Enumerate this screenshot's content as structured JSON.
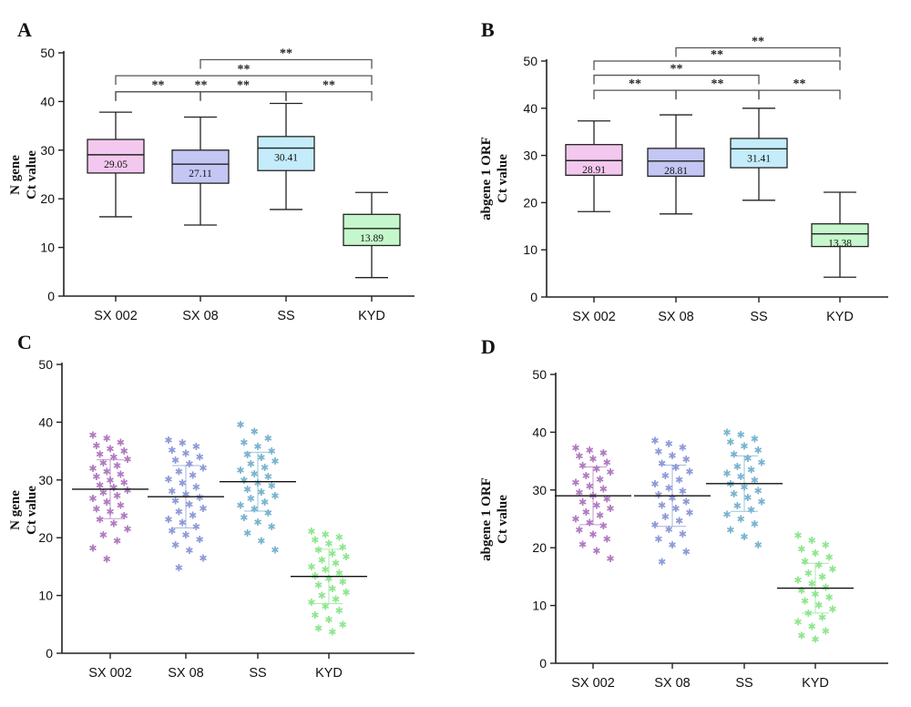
{
  "categories": [
    "SX 002",
    "SX 08",
    "SS",
    "KYD"
  ],
  "colors": {
    "box_fills": [
      "#f3c8ee",
      "#c4c6f4",
      "#c4ecfb",
      "#c6f7cc"
    ],
    "point_colors": [
      "#b07ac0",
      "#8d9ad8",
      "#79b3cf",
      "#8ee68e"
    ]
  },
  "chart_data": [
    {
      "panel": "A",
      "type": "box",
      "title": "",
      "ylabel": [
        "N gene",
        "Ct value"
      ],
      "xlabel": "",
      "ylim": [
        0,
        50
      ],
      "yticks": [
        0,
        10,
        20,
        30,
        40,
        50
      ],
      "categories": [
        "SX 002",
        "SX 08",
        "SS",
        "KYD"
      ],
      "boxes": [
        {
          "min": 16.3,
          "q1": 25.3,
          "median": 29.05,
          "q3": 32.2,
          "max": 37.8,
          "label": "29.05"
        },
        {
          "min": 14.6,
          "q1": 23.2,
          "median": 27.11,
          "q3": 30.0,
          "max": 36.8,
          "label": "27.11"
        },
        {
          "min": 17.8,
          "q1": 25.8,
          "median": 30.41,
          "q3": 32.8,
          "max": 39.6,
          "label": "30.41"
        },
        {
          "min": 3.8,
          "q1": 10.4,
          "median": 13.89,
          "q3": 16.8,
          "max": 21.3,
          "label": "13.89"
        }
      ],
      "significance": [
        {
          "from": 1,
          "to": 3,
          "y": 48.6,
          "label": "**"
        },
        {
          "from": 0,
          "to": 3,
          "y": 45.3,
          "label": "**"
        },
        {
          "from": 0,
          "to": 2,
          "y": 42.0,
          "label": "**"
        },
        {
          "from": 0,
          "to": 1,
          "y": 42.0,
          "label": "**"
        },
        {
          "from": 1,
          "to": 2,
          "y": 42.0,
          "label": "**"
        },
        {
          "from": 2,
          "to": 3,
          "y": 42.0,
          "label": "**"
        }
      ]
    },
    {
      "panel": "B",
      "type": "box",
      "title": "",
      "ylabel": [
        "abgene 1 ORF",
        "Ct value"
      ],
      "xlabel": "",
      "ylim": [
        0,
        50
      ],
      "yticks": [
        0,
        10,
        20,
        30,
        40,
        50
      ],
      "categories": [
        "SX 002",
        "SX 08",
        "SS",
        "KYD"
      ],
      "boxes": [
        {
          "min": 18.1,
          "q1": 25.8,
          "median": 28.91,
          "q3": 32.3,
          "max": 37.3,
          "label": "28.91"
        },
        {
          "min": 17.6,
          "q1": 25.6,
          "median": 28.81,
          "q3": 31.5,
          "max": 38.6,
          "label": "28.81"
        },
        {
          "min": 20.5,
          "q1": 27.4,
          "median": 31.41,
          "q3": 33.6,
          "max": 40.0,
          "label": "31.41"
        },
        {
          "min": 4.2,
          "q1": 10.7,
          "median": 13.38,
          "q3": 15.5,
          "max": 22.2,
          "label": "13.38"
        }
      ],
      "significance": [
        {
          "from": 1,
          "to": 3,
          "y": 52.8,
          "label": "**"
        },
        {
          "from": 0,
          "to": 3,
          "y": 50.0,
          "label": "**"
        },
        {
          "from": 0,
          "to": 2,
          "y": 47.0,
          "label": "**"
        },
        {
          "from": 0,
          "to": 1,
          "y": 43.8,
          "label": "**"
        },
        {
          "from": 1,
          "to": 2,
          "y": 43.8,
          "label": "**"
        },
        {
          "from": 2,
          "to": 3,
          "y": 43.8,
          "label": "**"
        }
      ]
    },
    {
      "panel": "C",
      "type": "scatter",
      "title": "",
      "ylabel": [
        "N gene",
        "Ct value"
      ],
      "xlabel": "",
      "ylim": [
        0,
        50
      ],
      "yticks": [
        0,
        10,
        20,
        30,
        40,
        50
      ],
      "categories": [
        "SX 002",
        "SX 08",
        "SS",
        "KYD"
      ],
      "groups": [
        {
          "mean": 28.4,
          "sd": 5.1,
          "values": [
            37.8,
            37.2,
            36.5,
            36.0,
            35.4,
            35.0,
            34.5,
            34.0,
            33.6,
            33.0,
            32.5,
            32.0,
            31.5,
            31.0,
            30.6,
            30.0,
            29.6,
            29.1,
            28.7,
            28.2,
            27.8,
            27.3,
            26.8,
            26.2,
            25.6,
            25.0,
            24.5,
            23.8,
            23.2,
            22.5,
            21.5,
            20.5,
            19.5,
            18.2,
            16.3
          ]
        },
        {
          "mean": 27.1,
          "sd": 5.4,
          "values": [
            36.9,
            36.4,
            35.8,
            35.2,
            34.6,
            34.0,
            33.4,
            32.8,
            32.1,
            31.5,
            30.8,
            30.1,
            29.5,
            28.8,
            28.1,
            27.5,
            27.0,
            26.4,
            25.8,
            25.1,
            24.5,
            23.9,
            23.2,
            22.6,
            21.9,
            21.2,
            20.5,
            19.7,
            18.8,
            17.8,
            16.5,
            14.8
          ]
        },
        {
          "mean": 29.7,
          "sd": 5.1,
          "values": [
            39.6,
            38.4,
            37.2,
            36.5,
            35.8,
            35.0,
            34.4,
            33.9,
            33.3,
            32.8,
            32.2,
            31.7,
            31.1,
            30.6,
            30.0,
            29.5,
            29.0,
            28.4,
            27.9,
            27.3,
            26.8,
            26.2,
            25.6,
            25.0,
            24.3,
            23.5,
            22.7,
            21.9,
            20.8,
            19.5,
            17.9
          ]
        },
        {
          "mean": 13.3,
          "sd": 4.7,
          "values": [
            21.1,
            20.6,
            20.1,
            19.6,
            19.0,
            18.4,
            17.9,
            17.3,
            16.7,
            16.2,
            15.6,
            15.0,
            14.5,
            13.9,
            13.4,
            12.9,
            12.4,
            11.8,
            11.2,
            10.6,
            10.0,
            9.4,
            8.8,
            8.1,
            7.4,
            6.6,
            5.8,
            5.0,
            4.3,
            3.7
          ]
        }
      ]
    },
    {
      "panel": "D",
      "type": "scatter",
      "title": "",
      "ylabel": [
        "abgene 1 ORF",
        "Ct value"
      ],
      "xlabel": "",
      "ylim": [
        0,
        50
      ],
      "yticks": [
        0,
        10,
        20,
        30,
        40,
        50
      ],
      "categories": [
        "SX 002",
        "SX 08",
        "SS",
        "KYD"
      ],
      "groups": [
        {
          "mean": 29.0,
          "sd": 5.0,
          "values": [
            37.3,
            36.9,
            36.4,
            35.9,
            35.4,
            34.8,
            34.2,
            33.7,
            33.1,
            32.5,
            31.9,
            31.3,
            30.7,
            30.2,
            29.6,
            29.0,
            28.5,
            27.9,
            27.4,
            26.8,
            26.2,
            25.6,
            25.0,
            24.4,
            23.8,
            23.1,
            22.3,
            21.5,
            20.6,
            19.5,
            18.1
          ]
        },
        {
          "mean": 29.0,
          "sd": 5.3,
          "values": [
            38.6,
            38.0,
            37.4,
            36.7,
            36.0,
            35.3,
            34.6,
            33.9,
            33.2,
            32.5,
            31.8,
            31.1,
            30.4,
            29.8,
            29.2,
            28.6,
            28.0,
            27.4,
            26.8,
            26.1,
            25.4,
            24.7,
            24.0,
            23.2,
            22.4,
            21.5,
            20.5,
            19.3,
            17.6
          ]
        },
        {
          "mean": 31.1,
          "sd": 4.8,
          "values": [
            40.0,
            39.6,
            38.9,
            38.3,
            37.6,
            36.9,
            36.2,
            35.5,
            34.8,
            34.1,
            33.5,
            32.9,
            32.3,
            31.7,
            31.1,
            30.5,
            29.9,
            29.3,
            28.7,
            28.0,
            27.3,
            26.6,
            25.8,
            25.0,
            24.1,
            23.1,
            21.9,
            20.5
          ]
        },
        {
          "mean": 13.0,
          "sd": 4.3,
          "values": [
            22.2,
            21.3,
            20.5,
            19.8,
            19.1,
            18.4,
            17.7,
            17.0,
            16.3,
            15.6,
            15.0,
            14.4,
            13.8,
            13.2,
            12.6,
            12.0,
            11.4,
            10.8,
            10.1,
            9.4,
            8.7,
            8.0,
            7.2,
            6.4,
            5.6,
            4.8,
            4.2
          ]
        }
      ]
    }
  ]
}
